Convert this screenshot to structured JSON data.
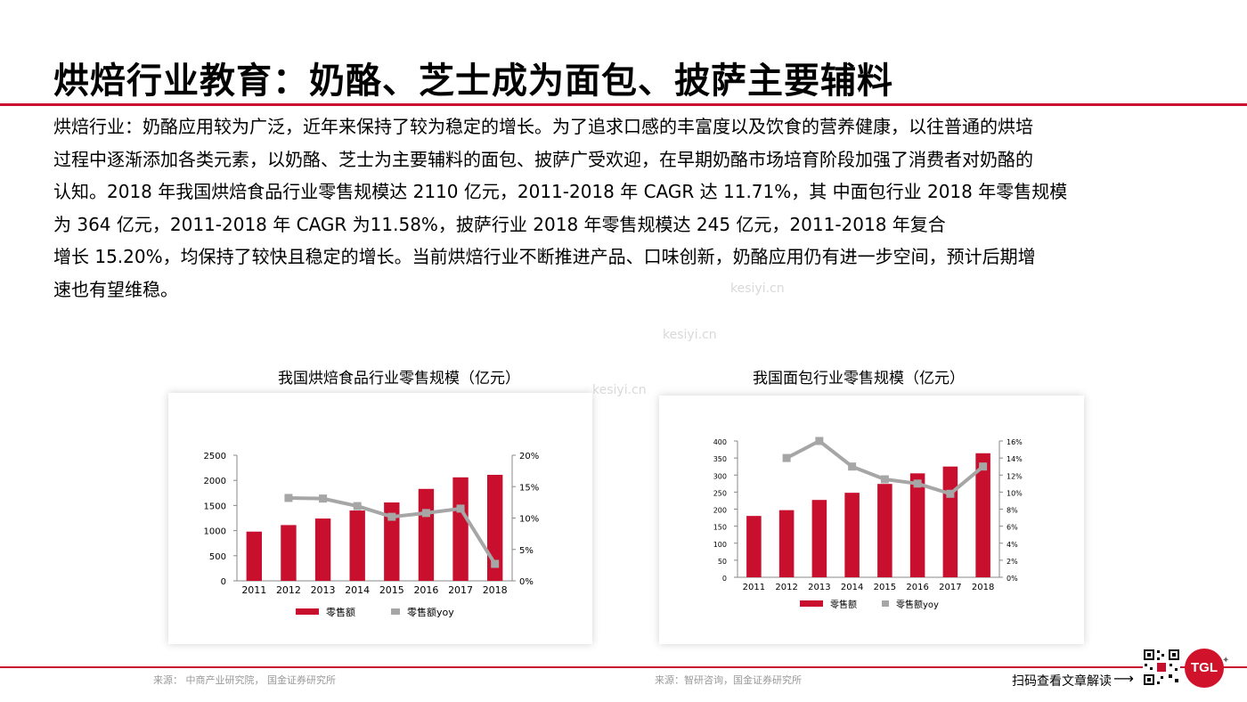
{
  "page_title": "烘焙行业教育：奶酪、芝士成为面包、披萨主要辅料",
  "body_lines": [
    "烘焙行业：奶酪应用较为广泛，近年来保持了较为稳定的增长。为了追求口感的丰富度以及饮食的营养健康，以往普通的烘培",
    "过程中逐渐添加各类元素，以奶酪、芝士为主要辅料的面包、披萨广受欢迎，在早期奶酪市场培育阶段加强了消费者对奶酪的",
    "认知。2018 年我国烘焙食品行业零售规模达 2110 亿元，2011-2018 年 CAGR 达 11.71%，其 中面包行业 2018 年零售规模",
    "为 364 亿元，2011-2018 年 CAGR 为11.58%，披萨行业 2018 年零售规模达 245 亿元，2011-2018 年复合",
    "增长 15.20%，均保持了较快且稳定的增长。当前烘焙行业不断推进产品、口味创新，奶酪应用仍有进一步空间，预计后期增",
    "速也有望维稳。"
  ],
  "colors": {
    "accent": "#c8102e",
    "bar": "#c8102e",
    "line": "#a6a6a6"
  },
  "watermark": "kesiyi.cn",
  "chart_data": [
    {
      "type": "bar",
      "title": "我国烘焙食品行业零售规模（亿元）",
      "categories": [
        "2011",
        "2012",
        "2013",
        "2014",
        "2015",
        "2016",
        "2017",
        "2018"
      ],
      "y_ticks": [
        "2500",
        "2000",
        "1500",
        "1000",
        "500",
        "0"
      ],
      "y2_ticks": [
        "20%",
        "15%",
        "10%",
        "5%",
        "0%"
      ],
      "ylim": [
        0,
        2500
      ],
      "y2lim": [
        0,
        20
      ],
      "series": [
        {
          "name": "零售额",
          "type": "bar",
          "axis": "left",
          "values": [
            980,
            1110,
            1240,
            1400,
            1560,
            1830,
            2060,
            2110
          ]
        },
        {
          "name": "零售额yoy",
          "type": "line",
          "axis": "right",
          "values": [
            null,
            13.2,
            13.1,
            11.9,
            10.2,
            10.8,
            11.5,
            2.7
          ]
        }
      ],
      "legend_position": "bottom"
    },
    {
      "type": "bar",
      "title": "我国面包行业零售规模（亿元）",
      "categories": [
        "2011",
        "2012",
        "2013",
        "2014",
        "2015",
        "2016",
        "2017",
        "2018"
      ],
      "y_ticks": [
        "400",
        "350",
        "300",
        "250",
        "200",
        "150",
        "100",
        "50",
        "0"
      ],
      "y2_ticks": [
        "16%",
        "14%",
        "12%",
        "10%",
        "8%",
        "6%",
        "4%",
        "2%",
        "0%"
      ],
      "ylim": [
        0,
        400
      ],
      "y2lim": [
        0,
        16
      ],
      "series": [
        {
          "name": "零售额",
          "type": "bar",
          "axis": "left",
          "values": [
            180,
            197,
            227,
            248,
            274,
            305,
            325,
            364
          ]
        },
        {
          "name": "零售额yoy",
          "type": "line",
          "axis": "right",
          "values": [
            null,
            14.0,
            16.0,
            13.0,
            11.5,
            11.0,
            9.8,
            13.0
          ]
        }
      ],
      "legend_position": "bottom"
    }
  ],
  "sources": [
    "来源： 中商产业研究院， 国金证券研究所",
    "来源：智研咨询，国金证券研究所"
  ],
  "footer": {
    "scan_label": "扫码查看文章解读",
    "arrow": "⟶",
    "logo_text": "TGL"
  }
}
